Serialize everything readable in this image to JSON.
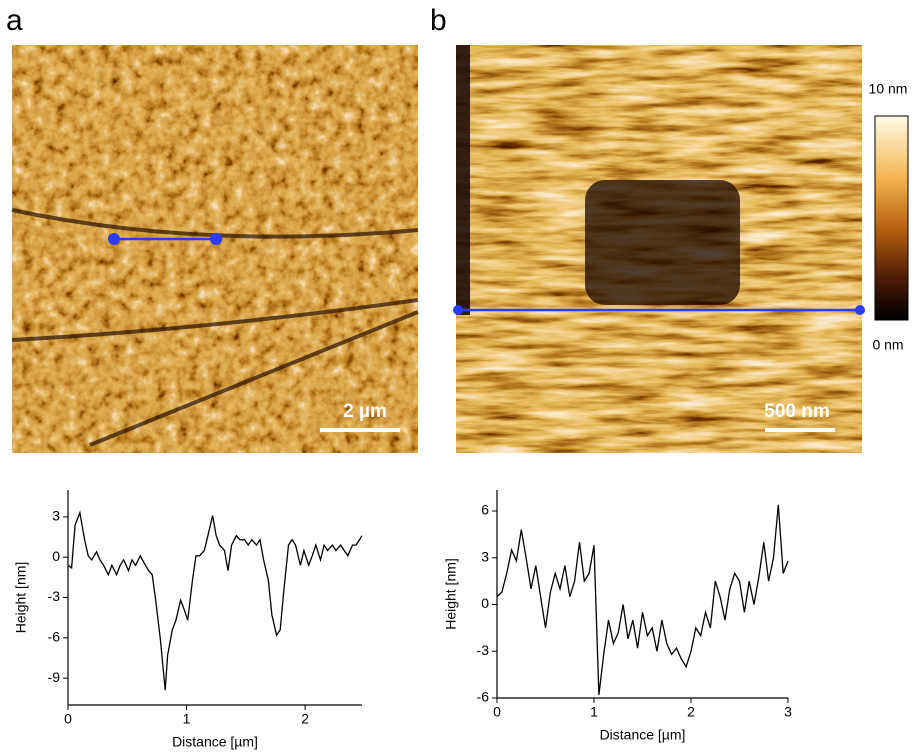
{
  "panels": [
    {
      "label": "a",
      "scale_bar": "2 µm"
    },
    {
      "label": "b",
      "scale_bar": "500 nm",
      "colorbar": {
        "max_label": "10 nm",
        "min_label": "0 nm"
      }
    }
  ],
  "chart_data": [
    {
      "type": "line",
      "xlabel": "Distance [µm]",
      "ylabel": "Height [nm]",
      "color": "#000000",
      "xlim": [
        0,
        2.48
      ],
      "xticks": [
        0,
        1,
        2
      ],
      "ylim": [
        -11,
        5
      ],
      "yticks": [
        3,
        0,
        -3,
        -6,
        -9
      ],
      "x": [
        0,
        0.03,
        0.06,
        0.1,
        0.14,
        0.17,
        0.2,
        0.24,
        0.27,
        0.3,
        0.34,
        0.37,
        0.41,
        0.44,
        0.47,
        0.51,
        0.54,
        0.57,
        0.61,
        0.64,
        0.68,
        0.71,
        0.74,
        0.78,
        0.82,
        0.84,
        0.88,
        0.91,
        0.95,
        0.98,
        1.01,
        1.05,
        1.08,
        1.11,
        1.15,
        1.18,
        1.22,
        1.25,
        1.28,
        1.32,
        1.35,
        1.38,
        1.42,
        1.45,
        1.49,
        1.52,
        1.55,
        1.59,
        1.62,
        1.65,
        1.69,
        1.72,
        1.76,
        1.79,
        1.82,
        1.86,
        1.89,
        1.92,
        1.96,
        1.99,
        2.03,
        2.06,
        2.09,
        2.13,
        2.16,
        2.19,
        2.23,
        2.26,
        2.3,
        2.33,
        2.36,
        2.4,
        2.43,
        2.48
      ],
      "values": [
        -0.6,
        -0.8,
        2.4,
        3.3,
        1.3,
        0.1,
        -0.2,
        0.4,
        -0.2,
        -0.6,
        -1.3,
        -0.6,
        -1.3,
        -0.6,
        -0.2,
        -1.0,
        -0.2,
        -0.6,
        0.1,
        -0.4,
        -1.0,
        -1.3,
        -3.2,
        -6.2,
        -9.9,
        -7.3,
        -5.4,
        -4.7,
        -3.2,
        -3.9,
        -4.7,
        -1.7,
        0.1,
        0.1,
        0.5,
        1.6,
        3.1,
        1.6,
        0.9,
        0.5,
        -1.0,
        0.9,
        1.6,
        1.3,
        1.3,
        0.9,
        1.3,
        0.9,
        1.3,
        -0.2,
        -1.7,
        -4.3,
        -5.8,
        -5.4,
        -2.5,
        0.9,
        1.3,
        0.9,
        -0.6,
        0.5,
        -0.6,
        0.1,
        0.9,
        -0.2,
        0.9,
        0.5,
        0.9,
        0.5,
        0.9,
        0.5,
        0.1,
        0.9,
        0.9,
        1.6
      ]
    },
    {
      "type": "line",
      "xlabel": "Distance [µm]",
      "ylabel": "Height [nm]",
      "color": "#000000",
      "xlim": [
        0,
        3
      ],
      "xticks": [
        0,
        1,
        2,
        3
      ],
      "ylim": [
        -6,
        7.35
      ],
      "yticks": [
        6,
        3,
        0,
        -3,
        -6
      ],
      "x": [
        0,
        0.05,
        0.1,
        0.15,
        0.2,
        0.25,
        0.3,
        0.35,
        0.4,
        0.45,
        0.5,
        0.55,
        0.6,
        0.65,
        0.7,
        0.75,
        0.8,
        0.85,
        0.9,
        0.95,
        1.0,
        1.05,
        1.1,
        1.15,
        1.2,
        1.25,
        1.3,
        1.35,
        1.4,
        1.45,
        1.5,
        1.55,
        1.6,
        1.65,
        1.7,
        1.75,
        1.8,
        1.85,
        1.9,
        1.95,
        2.0,
        2.05,
        2.1,
        2.15,
        2.2,
        2.25,
        2.3,
        2.35,
        2.4,
        2.45,
        2.5,
        2.55,
        2.6,
        2.65,
        2.7,
        2.75,
        2.8,
        2.85,
        2.9,
        2.95,
        3.0
      ],
      "values": [
        0.5,
        0.8,
        2.0,
        3.5,
        2.8,
        4.8,
        3.0,
        1.0,
        2.5,
        0.5,
        -1.5,
        0.8,
        2.0,
        1.0,
        2.5,
        0.5,
        1.5,
        4.0,
        1.5,
        2.0,
        3.8,
        -5.8,
        -3.2,
        -1.0,
        -2.5,
        -1.8,
        0.0,
        -2.2,
        -1.0,
        -2.8,
        -0.5,
        -2.0,
        -1.5,
        -3.0,
        -1.0,
        -2.5,
        -3.2,
        -2.8,
        -3.5,
        -4.0,
        -3.0,
        -1.5,
        -2.0,
        -0.5,
        -1.5,
        1.5,
        0.5,
        -1.0,
        1.0,
        2.0,
        1.5,
        -0.5,
        1.5,
        0.0,
        1.8,
        4.0,
        1.5,
        3.0,
        6.4,
        2.0,
        2.8
      ]
    }
  ]
}
